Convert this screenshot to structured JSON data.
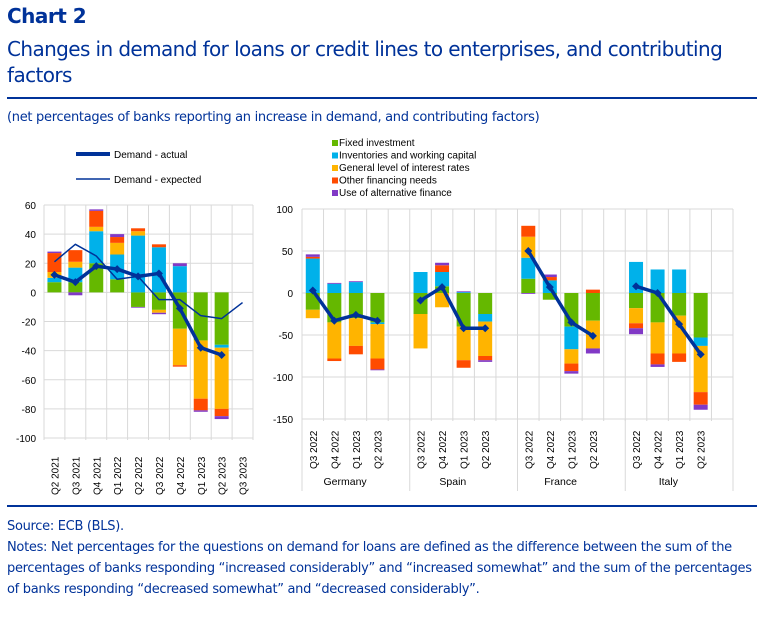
{
  "header": {
    "label": "Chart 2",
    "title": "Changes in demand for loans or credit lines to enterprises, and contributing factors",
    "subtitle": "(net percentages of banks reporting an increase in demand, and contributing factors)"
  },
  "footer": {
    "source": "Source: ECB (BLS).",
    "notes": "Notes: Net percentages for the questions on demand for loans are defined as the difference between the sum of the percentages of banks responding “increased considerably” and “increased somewhat” and the sum of the percentages of banks responding “decreased somewhat” and “decreased considerably”."
  },
  "colors": {
    "fixed": "#65b800",
    "inventories": "#00b1ea",
    "interest": "#ffb400",
    "other": "#ff4b00",
    "alternative": "#8139c6",
    "line": "#003299",
    "grid": "#d9d9d9",
    "text_blue": "#003299"
  },
  "chart_data": [
    {
      "type": "bar",
      "stacked": true,
      "title": "",
      "xlabel": "",
      "ylabel": "",
      "ylim": [
        -100,
        60
      ],
      "yticks": [
        60,
        40,
        20,
        0,
        -20,
        -40,
        -60,
        -80,
        -100
      ],
      "grid": true,
      "legend_position": "top",
      "categories": [
        "Q2 2021",
        "Q3 2021",
        "Q4 2021",
        "Q1 2022",
        "Q2 2022",
        "Q3 2022",
        "Q4 2022",
        "Q1 2023",
        "Q2 2023",
        "Q3 2023"
      ],
      "series": [
        {
          "name": "Fixed investment",
          "key": "fixed",
          "values": [
            7,
            7,
            20,
            9,
            -10,
            -12,
            -25,
            -33,
            -36,
            null
          ]
        },
        {
          "name": "Inventories and working capital",
          "key": "inventories",
          "values": [
            3,
            10,
            22,
            17,
            39,
            31,
            18,
            0,
            -2,
            null
          ]
        },
        {
          "name": "General level of interest rates",
          "key": "interest",
          "values": [
            4,
            4,
            3,
            8,
            3,
            -2,
            -25,
            -40,
            -42,
            null
          ]
        },
        {
          "name": "Other financing needs",
          "key": "other",
          "values": [
            13,
            8,
            11,
            4,
            2,
            2,
            -1,
            -8,
            -5,
            null
          ]
        },
        {
          "name": "Use of alternative finance",
          "key": "alternative",
          "values": [
            1,
            -2,
            1,
            2,
            -0.5,
            -1,
            2,
            -1,
            -2,
            null
          ]
        }
      ],
      "lines": [
        {
          "name": "Demand - actual",
          "key": "actual",
          "style": "thick-marker",
          "values": [
            12,
            7,
            18,
            16,
            11,
            13,
            -11,
            -38,
            -43,
            null
          ]
        },
        {
          "name": "Demand - expected",
          "key": "expected",
          "style": "thin",
          "values": [
            21,
            33,
            25,
            9,
            11,
            -5,
            -5,
            -16,
            -18,
            -7
          ]
        }
      ]
    },
    {
      "type": "bar",
      "stacked": true,
      "title": "",
      "xlabel": "",
      "ylabel": "",
      "ylim": [
        -150,
        100
      ],
      "yticks": [
        100,
        50,
        0,
        -50,
        -100,
        -150
      ],
      "grid": true,
      "legend_position": "top",
      "groups": [
        "Germany",
        "Spain",
        "France",
        "Italy"
      ],
      "categories": [
        "Q3 2022",
        "Q4 2022",
        "Q1 2023",
        "Q2 2023"
      ],
      "series": [
        {
          "name": "Fixed investment",
          "key": "fixed",
          "values": [
            [
              -20,
              -35,
              -30,
              -35
            ],
            [
              -25,
              8,
              -40,
              -25
            ],
            [
              17,
              -8,
              -40,
              -33
            ],
            [
              -18,
              -35,
              -27,
              -53
            ]
          ]
        },
        {
          "name": "Inventories and working capital",
          "key": "inventories",
          "values": [
            [
              41,
              11,
              13,
              -2
            ],
            [
              25,
              17,
              1,
              -9
            ],
            [
              25,
              15,
              -27,
              0
            ],
            [
              37,
              28,
              28,
              -10
            ]
          ]
        },
        {
          "name": "General level of interest rates",
          "key": "interest",
          "values": [
            [
              -10,
              -43,
              -33,
              -41
            ],
            [
              -41,
              -17,
              -40,
              -41
            ],
            [
              25,
              0,
              -17,
              -33
            ],
            [
              -18,
              -37,
              -45,
              -55
            ]
          ]
        },
        {
          "name": "Other financing needs",
          "key": "other",
          "values": [
            [
              2,
              -3,
              -10,
              -13
            ],
            [
              0,
              8,
              -9,
              -5
            ],
            [
              13,
              4,
              -9,
              4
            ],
            [
              -6,
              -13,
              -10,
              -15
            ]
          ]
        },
        {
          "name": "Use of alternative finance",
          "key": "alternative",
          "values": [
            [
              3,
              1,
              1,
              -1
            ],
            [
              0,
              3,
              1,
              -2
            ],
            [
              -1,
              3,
              -3,
              -6
            ],
            [
              -7,
              -3,
              0,
              -6
            ]
          ]
        }
      ],
      "lines": [
        {
          "name": "Demand - actual",
          "key": "actual",
          "values": [
            [
              3,
              -33,
              -26,
              -33
            ],
            [
              -9,
              7,
              -42,
              -42
            ],
            [
              50,
              7,
              -35,
              -51
            ],
            [
              8,
              0,
              -37,
              -73
            ]
          ]
        }
      ]
    }
  ]
}
